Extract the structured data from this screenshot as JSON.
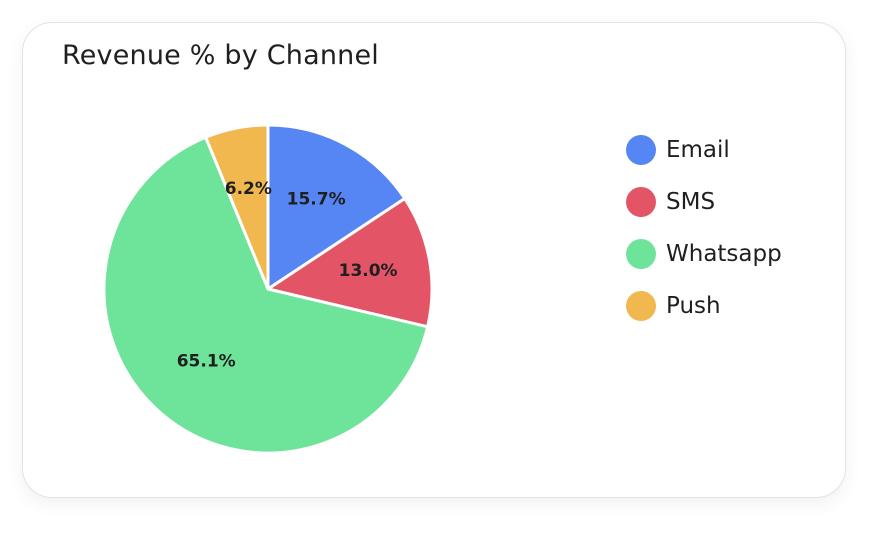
{
  "chart_data": {
    "type": "pie",
    "title": "Revenue % by Channel",
    "slices": [
      {
        "name": "Email",
        "value": 15.7,
        "label": "15.7%",
        "color": "#5686f3"
      },
      {
        "name": "SMS",
        "value": 13.0,
        "label": "13.0%",
        "color": "#e35566"
      },
      {
        "name": "Whatsapp",
        "value": 65.1,
        "label": "65.1%",
        "color": "#6ee39a"
      },
      {
        "name": "Push",
        "value": 6.2,
        "label": "6.2%",
        "color": "#f0b84f"
      }
    ],
    "legend_position": "right",
    "start_direction": "top",
    "direction": "clockwise"
  }
}
